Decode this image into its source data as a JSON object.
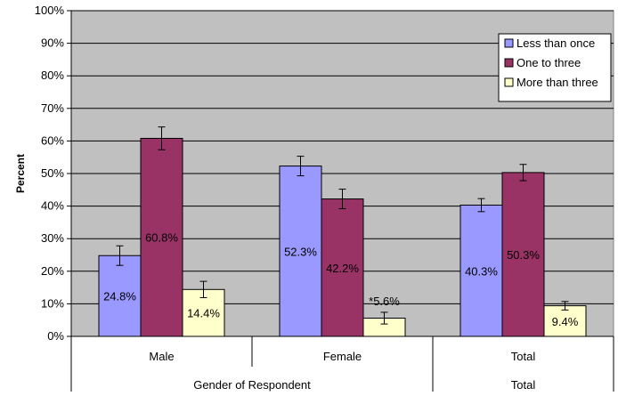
{
  "chart_data": {
    "type": "bar",
    "title": "",
    "ylabel": "Percent",
    "ylim": [
      0,
      100
    ],
    "yticks": [
      "0%",
      "10%",
      "20%",
      "30%",
      "40%",
      "50%",
      "60%",
      "70%",
      "80%",
      "90%",
      "100%"
    ],
    "categories": [
      "Male",
      "Female",
      "Total"
    ],
    "group_labels": [
      {
        "label": "Gender of Respondent",
        "spans": [
          "Male",
          "Female"
        ]
      },
      {
        "label": "Total",
        "spans": [
          "Total"
        ]
      }
    ],
    "series": [
      {
        "name": "Less than once",
        "color": "#9999ff",
        "values": [
          24.8,
          52.3,
          40.3
        ],
        "labels": [
          "24.8%",
          "52.3%",
          "40.3%"
        ],
        "error": [
          3.0,
          3.0,
          2.0
        ]
      },
      {
        "name": "One to three",
        "color": "#993366",
        "values": [
          60.8,
          42.2,
          50.3
        ],
        "labels": [
          "60.8%",
          "42.2%",
          "50.3%"
        ],
        "error": [
          3.5,
          3.0,
          2.5
        ]
      },
      {
        "name": "More than three",
        "color": "#ffffcc",
        "values": [
          14.4,
          5.6,
          9.4
        ],
        "labels": [
          "14.4%",
          "*5.6%",
          "9.4%"
        ],
        "error": [
          2.5,
          1.8,
          1.3
        ]
      }
    ],
    "legend_position": "top-right",
    "grid": true,
    "error_bars": true
  }
}
